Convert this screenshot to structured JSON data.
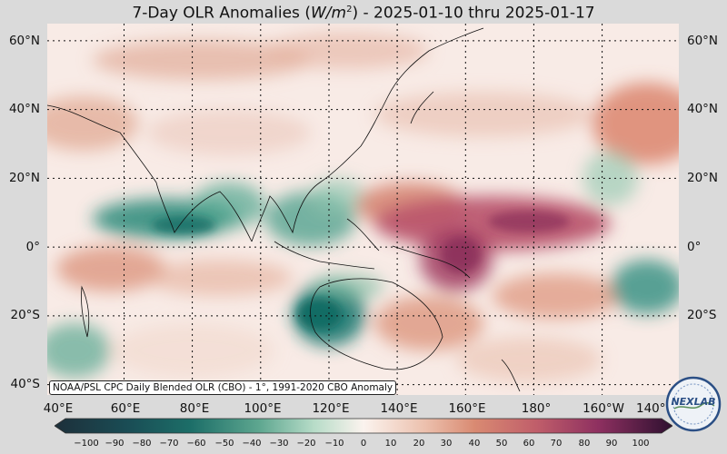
{
  "title": {
    "prefix": "7-Day OLR Anomalies (",
    "unit_base": "W/m",
    "unit_exp": "2",
    "suffix": ") - 2025-01-10 thru 2025-01-17"
  },
  "map": {
    "lat_labels": [
      "60°N",
      "40°N",
      "20°N",
      "0°",
      "20°S",
      "40°S"
    ],
    "lon_labels": [
      "40°E",
      "60°E",
      "80°E",
      "100°E",
      "120°E",
      "140°E",
      "160°E",
      "180°",
      "160°W",
      "140°W"
    ],
    "lon_range_deg_east": [
      40,
      225
    ],
    "lat_range_deg": [
      -42,
      66
    ],
    "source_note": "NOAA/PSL CPC Daily Blended OLR (CBO) - 1°, 1991-2020 CBO Anomaly"
  },
  "colorbar": {
    "ticks": [
      "−100",
      "−90",
      "−80",
      "−70",
      "−60",
      "−50",
      "−40",
      "−30",
      "−20",
      "−10",
      "0",
      "10",
      "20",
      "30",
      "40",
      "50",
      "60",
      "70",
      "80",
      "90",
      "100"
    ],
    "range": [
      -100,
      100
    ],
    "negative_color": "#1c6e68",
    "neutral_color": "#fbf3ee",
    "positive_color": "#5c1748"
  },
  "logo": {
    "text": "NEXLAB"
  }
}
